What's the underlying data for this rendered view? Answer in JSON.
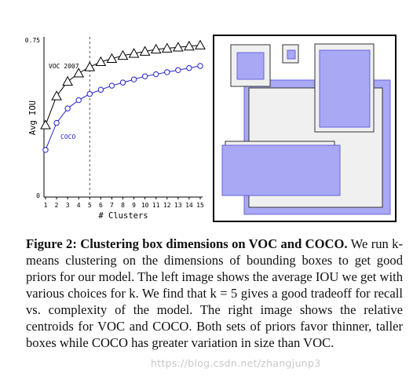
{
  "chart_data": {
    "type": "line",
    "xlabel": "# Clusters",
    "ylabel": "Avg IOU",
    "x": [
      1,
      2,
      3,
      4,
      5,
      6,
      7,
      8,
      9,
      10,
      11,
      12,
      13,
      14,
      15
    ],
    "xticks": [
      "1",
      "2",
      "3",
      "4",
      "5",
      "6",
      "7",
      "8",
      "9",
      "10",
      "11",
      "12",
      "13",
      "14",
      "15"
    ],
    "yticks": [
      "0",
      "0.75"
    ],
    "ylim": [
      0,
      0.75
    ],
    "xlim": [
      1,
      15
    ],
    "vline_x": 5,
    "grid": false,
    "series": [
      {
        "name": "VOC 2007",
        "marker": "triangle",
        "color": "#000000",
        "values": [
          0.34,
          0.48,
          0.55,
          0.59,
          0.62,
          0.645,
          0.66,
          0.675,
          0.685,
          0.695,
          0.705,
          0.71,
          0.715,
          0.72,
          0.725
        ]
      },
      {
        "name": "COCO",
        "marker": "circle",
        "color": "#2222cc",
        "values": [
          0.22,
          0.35,
          0.42,
          0.46,
          0.49,
          0.51,
          0.53,
          0.545,
          0.56,
          0.575,
          0.585,
          0.595,
          0.605,
          0.615,
          0.625
        ]
      }
    ]
  },
  "caption": {
    "figure_label": "Figure 2:",
    "heading": "Clustering box dimensions on VOC and COCO.",
    "body": "We run k-means clustering on the dimensions of bounding boxes to get good priors for our model. The left image shows the average IOU we get with various choices for k. We find that k = 5 gives a good tradeoff for recall vs. complexity of the model. The right image shows the relative centroids for VOC and COCO. Both sets of priors favor thinner, taller boxes while COCO has greater variation in size than VOC."
  },
  "watermark": "https://blog.csdn.net/zhangjunp3",
  "colors": {
    "voc_box": "#f0f0f0",
    "coco_box": "#a8a8f5",
    "coco_stroke": "#6666dd"
  }
}
